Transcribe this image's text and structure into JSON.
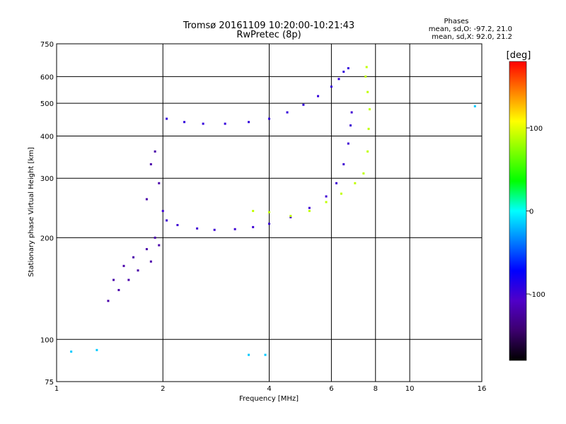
{
  "chart_data": {
    "type": "scatter",
    "title": "Tromsø 20161109 10:20:00-10:21:43",
    "subtitle": "RwPretec (8p)",
    "xlabel": "Frequency [MHz]",
    "ylabel": "Stationary phase Virtual Height [km]",
    "x_scale": "log",
    "y_scale": "log",
    "xlim": [
      1,
      16
    ],
    "ylim": [
      75,
      750
    ],
    "x_ticks": [
      1,
      2,
      4,
      6,
      8,
      10,
      16
    ],
    "x_tick_labels": [
      "1",
      "2",
      "4",
      "6",
      "8",
      "10",
      "16"
    ],
    "y_ticks": [
      75,
      100,
      200,
      300,
      400,
      500,
      600,
      750
    ],
    "y_tick_labels": [
      "75",
      "100",
      "200",
      "300",
      "400",
      "500",
      "600",
      "750"
    ],
    "phase_stats": {
      "heading": "Phases",
      "o_mode": "mean, sd,O:  -97.2, 21.0",
      "x_mode": "mean, sd,X:  92.0, 21.2"
    },
    "colorbar": {
      "unit_label": "[deg]",
      "min": -180,
      "max": 180,
      "ticks": [
        100,
        0,
        -100
      ],
      "tick_labels": [
        "100",
        "0",
        "-100"
      ],
      "colors": [
        "#000000",
        "#3c006e",
        "#5000c8",
        "#0000ff",
        "#0080ff",
        "#00ffff",
        "#00ff00",
        "#80ff00",
        "#ffff00",
        "#ff8000",
        "#ff0000"
      ]
    },
    "series": [
      {
        "name": "",
        "phase": -95,
        "points": [
          [
            2.05,
            450
          ],
          [
            2.3,
            440
          ],
          [
            2.6,
            435
          ],
          [
            3.0,
            435
          ],
          [
            3.5,
            440
          ],
          [
            4.0,
            450
          ],
          [
            4.5,
            470
          ],
          [
            5.0,
            495
          ],
          [
            5.5,
            525
          ],
          [
            6.0,
            560
          ],
          [
            6.3,
            590
          ],
          [
            6.5,
            620
          ],
          [
            6.7,
            635
          ]
        ]
      },
      {
        "name": "",
        "phase": -100,
        "points": [
          [
            2.0,
            240
          ],
          [
            2.05,
            225
          ],
          [
            2.2,
            218
          ],
          [
            2.5,
            213
          ],
          [
            2.8,
            211
          ],
          [
            3.2,
            212
          ],
          [
            3.6,
            215
          ],
          [
            4.0,
            220
          ],
          [
            4.6,
            230
          ],
          [
            5.2,
            245
          ],
          [
            5.8,
            265
          ],
          [
            6.2,
            290
          ],
          [
            6.5,
            330
          ],
          [
            6.7,
            380
          ],
          [
            6.8,
            430
          ],
          [
            6.85,
            470
          ]
        ]
      },
      {
        "name": "",
        "phase": -120,
        "points": [
          [
            1.4,
            130
          ],
          [
            1.45,
            150
          ],
          [
            1.5,
            140
          ],
          [
            1.55,
            165
          ],
          [
            1.6,
            150
          ],
          [
            1.65,
            175
          ],
          [
            1.7,
            160
          ],
          [
            1.8,
            185
          ],
          [
            1.85,
            170
          ],
          [
            1.9,
            200
          ],
          [
            1.95,
            190
          ],
          [
            1.8,
            260
          ],
          [
            1.85,
            330
          ],
          [
            1.9,
            360
          ],
          [
            1.95,
            290
          ]
        ]
      },
      {
        "name": "",
        "phase": 90,
        "points": [
          [
            3.6,
            240
          ],
          [
            4.0,
            238
          ],
          [
            4.6,
            232
          ],
          [
            5.2,
            240
          ],
          [
            5.8,
            255
          ],
          [
            6.4,
            270
          ],
          [
            7.0,
            290
          ],
          [
            7.4,
            310
          ],
          [
            7.6,
            360
          ],
          [
            7.65,
            420
          ],
          [
            7.7,
            480
          ],
          [
            7.6,
            540
          ],
          [
            7.5,
            600
          ],
          [
            7.55,
            640
          ]
        ]
      },
      {
        "name": "",
        "phase": -15,
        "points": [
          [
            1.1,
            92
          ],
          [
            1.3,
            93
          ],
          [
            3.5,
            90
          ],
          [
            3.9,
            90
          ],
          [
            15.3,
            490
          ]
        ]
      }
    ]
  }
}
